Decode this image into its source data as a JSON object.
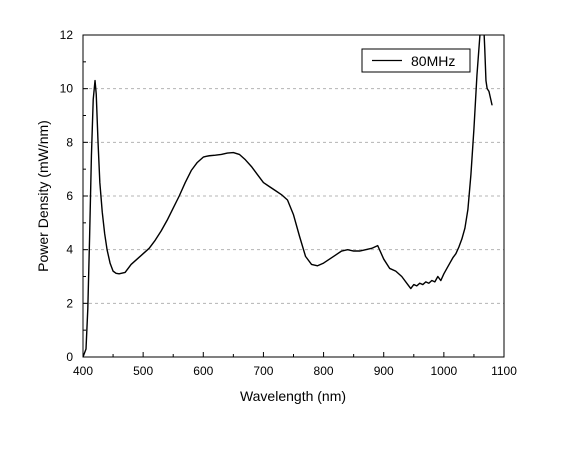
{
  "chart_data": {
    "type": "line",
    "title": "",
    "xlabel": "Wavelength (nm)",
    "ylabel": "Power Density (mW/nm)",
    "xlim": [
      400,
      1100
    ],
    "ylim": [
      0,
      12
    ],
    "xticks": [
      400,
      500,
      600,
      700,
      800,
      900,
      1000,
      1100
    ],
    "yticks": [
      0,
      2,
      4,
      6,
      8,
      10,
      12
    ],
    "grid": "horizontal-dashed",
    "legend_position": "top-right",
    "colors": {
      "line": "#000000",
      "grid": "#b4b4b4"
    },
    "series": [
      {
        "name": "80MHz",
        "x": [
          400,
          405,
          408,
          411,
          414,
          417,
          420,
          422,
          425,
          428,
          432,
          436,
          440,
          445,
          450,
          455,
          460,
          470,
          480,
          490,
          500,
          510,
          520,
          530,
          540,
          550,
          560,
          570,
          580,
          590,
          600,
          605,
          610,
          620,
          630,
          640,
          650,
          660,
          670,
          680,
          690,
          700,
          710,
          720,
          730,
          740,
          750,
          760,
          770,
          780,
          790,
          800,
          810,
          820,
          830,
          840,
          850,
          860,
          870,
          880,
          890,
          900,
          910,
          920,
          930,
          940,
          945,
          950,
          955,
          960,
          965,
          970,
          975,
          980,
          985,
          990,
          995,
          1000,
          1005,
          1010,
          1015,
          1020,
          1025,
          1030,
          1035,
          1040,
          1045,
          1050,
          1055,
          1060,
          1062,
          1065,
          1068,
          1070,
          1072,
          1075,
          1078,
          1080
        ],
        "y": [
          0.0,
          0.3,
          1.8,
          4.5,
          7.5,
          9.6,
          10.3,
          9.8,
          8.0,
          6.5,
          5.4,
          4.6,
          4.0,
          3.5,
          3.2,
          3.12,
          3.1,
          3.15,
          3.45,
          3.65,
          3.85,
          4.05,
          4.35,
          4.7,
          5.1,
          5.55,
          6.0,
          6.5,
          6.95,
          7.25,
          7.45,
          7.48,
          7.5,
          7.52,
          7.55,
          7.6,
          7.62,
          7.55,
          7.35,
          7.1,
          6.8,
          6.5,
          6.35,
          6.2,
          6.05,
          5.85,
          5.3,
          4.5,
          3.75,
          3.45,
          3.4,
          3.5,
          3.65,
          3.8,
          3.95,
          4.0,
          3.95,
          3.95,
          4.0,
          4.05,
          4.15,
          3.65,
          3.3,
          3.2,
          3.0,
          2.7,
          2.55,
          2.7,
          2.65,
          2.75,
          2.7,
          2.8,
          2.75,
          2.85,
          2.8,
          3.0,
          2.85,
          3.1,
          3.3,
          3.5,
          3.7,
          3.85,
          4.1,
          4.4,
          4.8,
          5.5,
          6.8,
          8.5,
          10.5,
          12.0,
          12.5,
          13.0,
          11.5,
          10.3,
          10.0,
          9.9,
          9.6,
          9.4
        ]
      }
    ]
  }
}
